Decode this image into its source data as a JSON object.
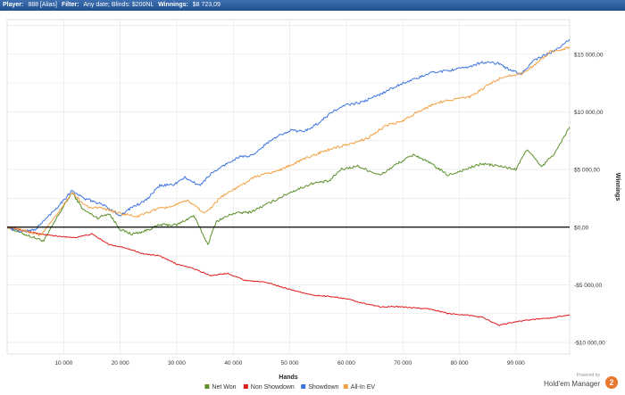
{
  "header": {
    "player_label": "Player:",
    "player_value": "888 [Alias]",
    "filter_label": "Filter:",
    "filter_value": "Any date; Blinds: $200NL",
    "winnings_label": "Winnings:",
    "winnings_value": "$8 723,09"
  },
  "branding": {
    "powered_by": "Powered by",
    "name": "Hold'em Manager",
    "badge": "2"
  },
  "chart_data": {
    "type": "line",
    "xlabel": "Hands",
    "ylabel": "Winnings",
    "xlim": [
      0,
      99500
    ],
    "ylim": [
      -11000,
      18000
    ],
    "x_ticks": [
      10000,
      20000,
      30000,
      40000,
      50000,
      60000,
      70000,
      80000,
      90000
    ],
    "x_tick_labels": [
      "10 000",
      "20 000",
      "30 000",
      "40 000",
      "50 000",
      "60 000",
      "70 000",
      "80 000",
      "90 000"
    ],
    "y_ticks": [
      15000,
      10000,
      5000,
      0,
      -5000,
      -10000
    ],
    "y_tick_labels": [
      "$15 000,00",
      "$10 000,00",
      "$5 000,00",
      "$0,00",
      "-$5 000,00",
      "-$10 000,00"
    ],
    "grid": true,
    "zero_line": true,
    "legend_position": "bottom-center",
    "series": [
      {
        "name": "Net Won",
        "color": "#5a8f2a",
        "x": [
          0,
          3000,
          6500,
          9000,
          11500,
          13500,
          16000,
          18000,
          20000,
          22000,
          24000,
          27000,
          30000,
          33000,
          35500,
          37000,
          40000,
          43000,
          46000,
          50000,
          54000,
          57000,
          59000,
          62000,
          66000,
          69000,
          72000,
          75000,
          78000,
          81000,
          84000,
          87000,
          90000,
          92000,
          94500,
          97000,
          99500
        ],
        "y": [
          0,
          -600,
          -1200,
          1000,
          3000,
          1500,
          800,
          1200,
          -200,
          -600,
          -400,
          200,
          200,
          1000,
          -1500,
          500,
          1200,
          1300,
          2000,
          3000,
          3800,
          4000,
          5000,
          5300,
          4500,
          5500,
          6300,
          5500,
          4500,
          5000,
          5500,
          5300,
          5000,
          6800,
          5200,
          6500,
          8700
        ]
      },
      {
        "name": "Non Showdown",
        "color": "#e01b1b",
        "x": [
          0,
          3000,
          6000,
          9000,
          12000,
          15000,
          18000,
          21000,
          24000,
          27000,
          30000,
          33000,
          36000,
          39000,
          42000,
          46000,
          50000,
          54000,
          57000,
          60000,
          63000,
          66000,
          69000,
          72000,
          75000,
          78000,
          81000,
          84000,
          87000,
          90000,
          93000,
          96000,
          99500
        ],
        "y": [
          0,
          -300,
          -600,
          -800,
          -900,
          -600,
          -1500,
          -1800,
          -2300,
          -2500,
          -3200,
          -3600,
          -4200,
          -4000,
          -4600,
          -4800,
          -5400,
          -5900,
          -6000,
          -6200,
          -6600,
          -6900,
          -6900,
          -7000,
          -7100,
          -7500,
          -7600,
          -7800,
          -8500,
          -8200,
          -8000,
          -7900,
          -7600
        ]
      },
      {
        "name": "Showdown",
        "color": "#3d74e0",
        "x": [
          0,
          2500,
          5000,
          7000,
          9000,
          11500,
          13500,
          15500,
          17500,
          20000,
          22000,
          24500,
          27000,
          29500,
          31500,
          34000,
          36000,
          38500,
          41000,
          43500,
          46000,
          48000,
          50000,
          52500,
          55000,
          57500,
          60000,
          62500,
          65000,
          67500,
          70000,
          72500,
          75000,
          78000,
          81000,
          84000,
          87000,
          89000,
          91000,
          93000,
          95500,
          98000,
          99500
        ],
        "y": [
          0,
          -400,
          -200,
          800,
          1800,
          3200,
          2500,
          2200,
          1800,
          1000,
          1700,
          2300,
          3600,
          3700,
          4300,
          3600,
          4600,
          5400,
          6100,
          6200,
          7300,
          7900,
          8400,
          8300,
          9000,
          10000,
          10600,
          10800,
          11300,
          11900,
          12500,
          12900,
          13400,
          13600,
          13800,
          14300,
          14200,
          13600,
          13300,
          14400,
          15000,
          15600,
          16300
        ]
      },
      {
        "name": "All-In EV",
        "color": "#f2a043",
        "x": [
          0,
          3000,
          6000,
          9000,
          11500,
          14000,
          17000,
          20000,
          23000,
          26000,
          29000,
          32000,
          35000,
          38000,
          41000,
          44000,
          48000,
          52000,
          55000,
          58000,
          61000,
          64000,
          67000,
          70000,
          73000,
          76000,
          79000,
          82000,
          85000,
          88000,
          91000,
          94000,
          96000,
          99500
        ],
        "y": [
          0,
          -300,
          -700,
          1200,
          3000,
          1800,
          1600,
          1200,
          900,
          1500,
          1800,
          2300,
          1200,
          2700,
          3500,
          4400,
          4900,
          5800,
          6400,
          6900,
          7200,
          7800,
          8800,
          9200,
          10100,
          10800,
          11100,
          11300,
          12300,
          13100,
          13300,
          14300,
          15200,
          15600
        ]
      }
    ]
  }
}
